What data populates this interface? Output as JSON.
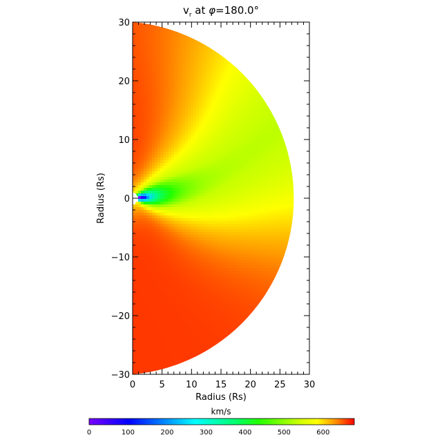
{
  "chart_data": {
    "type": "heatmap",
    "title_main": "v",
    "title_sub": "r",
    "title_rest": " at ",
    "title_phi": "φ",
    "title_value": "=180.0°",
    "xlabel": "Radius (Rs)",
    "ylabel": "Radius (Rs)",
    "xlim": [
      0,
      30
    ],
    "ylim": [
      -30,
      30
    ],
    "x_ticks": [
      "0",
      "5",
      "10",
      "15",
      "20",
      "25",
      "30"
    ],
    "y_ticks": [
      "30",
      "20",
      "10",
      "0",
      "−10",
      "−20",
      "−30"
    ],
    "domain": "right half-disk, radius 30 Rs, inner boundary about 1 Rs",
    "field_description": "radial wind speed: slow streamer belt near equator, fast wind at high latitude",
    "value_range_kms": [
      0,
      680
    ],
    "colorbar": {
      "label": "km/s",
      "ticks": [
        "0",
        "100",
        "200",
        "300",
        "400",
        "500",
        "600"
      ],
      "range": [
        0,
        680
      ],
      "colormap": [
        "#7a00ff",
        "#0000ff",
        "#00d8ff",
        "#00ff80",
        "#20ff00",
        "#c8ff00",
        "#ffff00",
        "#ff9900",
        "#ff1a00"
      ]
    }
  }
}
